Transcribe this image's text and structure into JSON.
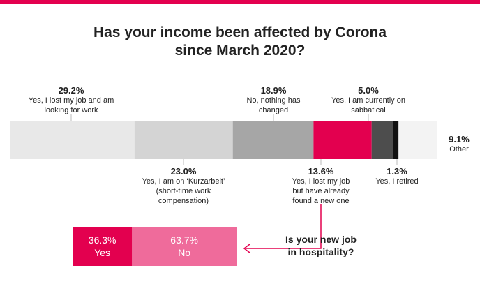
{
  "chart_data": [
    {
      "type": "stacked-bar",
      "title": "Has your income been affected by Corona since March 2020?",
      "categories": [
        "Yes, I lost my job and am looking for work",
        "Yes, I am on ‘Kurzarbeit’ (short-time work compensation)",
        "No, nothing has changed",
        "Yes, I lost my job but have already found a new one",
        "Yes, I am currently on sabbatical",
        "Yes, I retired",
        "Other"
      ],
      "values": [
        29.2,
        23.0,
        18.9,
        13.6,
        5.0,
        1.3,
        9.1
      ],
      "value_labels": [
        "29.2%",
        "23.0%",
        "18.9%",
        "13.6%",
        "5.0%",
        "1.3%",
        "9.1%"
      ],
      "colors": [
        "#e8e8e8",
        "#d4d4d4",
        "#a6a6a6",
        "#e3004f",
        "#4d4d4d",
        "#111111",
        "#f3f3f3"
      ]
    },
    {
      "type": "stacked-bar",
      "title": "Is your new job in hospitality?",
      "categories": [
        "Yes",
        "No"
      ],
      "values": [
        36.3,
        63.7
      ],
      "value_labels": [
        "36.3%",
        "63.7%"
      ],
      "colors": [
        "#e3004f",
        "#ef6b9b"
      ]
    }
  ]
}
